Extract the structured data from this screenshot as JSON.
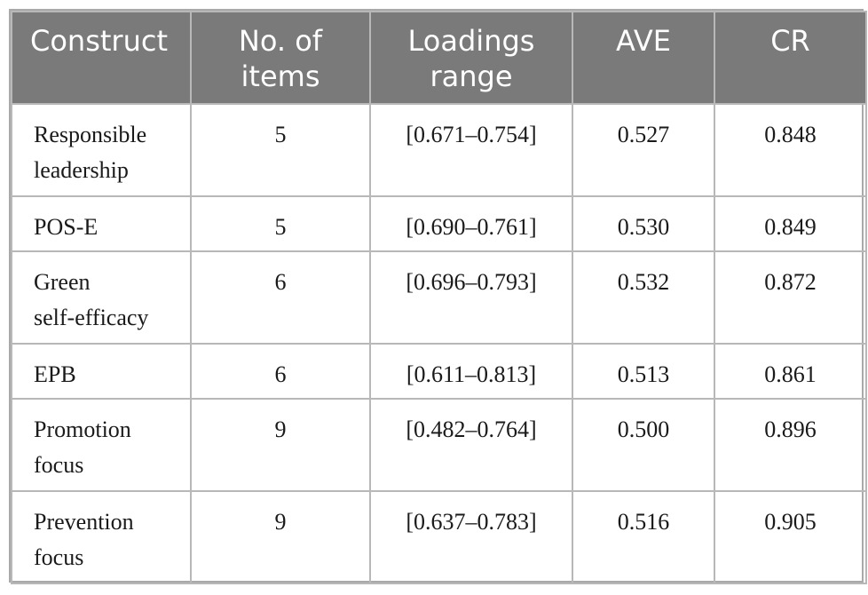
{
  "headers": {
    "construct": "Construct",
    "items_line1": "No. of",
    "items_line2": "items",
    "loadings_line1": "Loadings",
    "loadings_line2": "range",
    "ave": "AVE",
    "cr": "CR"
  },
  "rows": [
    {
      "construct_line1": "Responsible",
      "construct_line2": "leadership",
      "items": "5",
      "loadings": "[0.671–0.754]",
      "ave": "0.527",
      "cr": "0.848"
    },
    {
      "construct_line1": "POS-E",
      "construct_line2": "",
      "items": "5",
      "loadings": "[0.690–0.761]",
      "ave": "0.530",
      "cr": "0.849"
    },
    {
      "construct_line1": "Green",
      "construct_line2": "self-efficacy",
      "items": "6",
      "loadings": "[0.696–0.793]",
      "ave": "0.532",
      "cr": "0.872"
    },
    {
      "construct_line1": "EPB",
      "construct_line2": "",
      "items": "6",
      "loadings": "[0.611–0.813]",
      "ave": "0.513",
      "cr": "0.861"
    },
    {
      "construct_line1": "Promotion",
      "construct_line2": "focus",
      "items": "9",
      "loadings": "[0.482–0.764]",
      "ave": "0.500",
      "cr": "0.896"
    },
    {
      "construct_line1": "Prevention",
      "construct_line2": "focus",
      "items": "9",
      "loadings": "[0.637–0.783]",
      "ave": "0.516",
      "cr": "0.905"
    }
  ]
}
